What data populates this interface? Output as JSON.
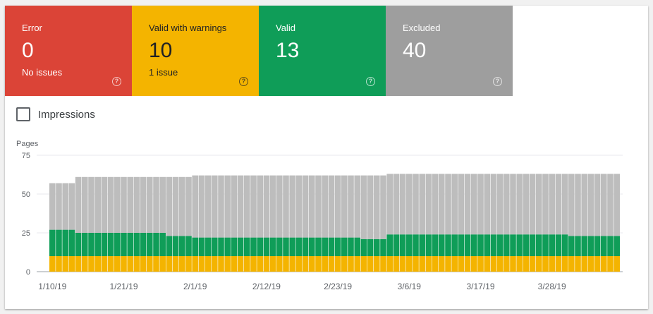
{
  "tiles": [
    {
      "label": "Error",
      "count": "0",
      "sub": "No issues",
      "color": "#db4437"
    },
    {
      "label": "Valid with warnings",
      "count": "10",
      "sub": "1 issue",
      "color": "#f4b400"
    },
    {
      "label": "Valid",
      "count": "13",
      "sub": "",
      "color": "#0f9d58"
    },
    {
      "label": "Excluded",
      "count": "40",
      "sub": "",
      "color": "#9e9e9e"
    }
  ],
  "help_glyph": "?",
  "impressions": {
    "label": "Impressions",
    "checked": false
  },
  "chart_data": {
    "type": "bar",
    "stacked": true,
    "ylabel": "Pages",
    "ylim": [
      0,
      75
    ],
    "yticks": [
      0,
      25,
      50,
      75
    ],
    "grid": true,
    "xtick_labels": [
      "1/10/19",
      "1/21/19",
      "2/1/19",
      "2/12/19",
      "2/23/19",
      "3/6/19",
      "3/17/19",
      "3/28/19"
    ],
    "xtick_indices": [
      0,
      11,
      22,
      33,
      44,
      55,
      66,
      77
    ],
    "series": [
      {
        "key": "warnings",
        "color": "#f4b400",
        "values": [
          10,
          10,
          10,
          10,
          10,
          10,
          10,
          10,
          10,
          10,
          10,
          10,
          10,
          10,
          10,
          10,
          10,
          10,
          10,
          10,
          10,
          10,
          10,
          10,
          10,
          10,
          10,
          10,
          10,
          10,
          10,
          10,
          10,
          10,
          10,
          10,
          10,
          10,
          10,
          10,
          10,
          10,
          10,
          10,
          10,
          10,
          10,
          10,
          10,
          10,
          10,
          10,
          10,
          10,
          10,
          10,
          10,
          10,
          10,
          10,
          10,
          10,
          10,
          10,
          10,
          10,
          10,
          10,
          10,
          10,
          10,
          10,
          10,
          10,
          10,
          10,
          10,
          10,
          10,
          10,
          10,
          10,
          10,
          10,
          10,
          10,
          10,
          10
        ]
      },
      {
        "key": "valid",
        "color": "#0f9d58",
        "values": [
          17,
          17,
          17,
          17,
          15,
          15,
          15,
          15,
          15,
          15,
          15,
          15,
          15,
          15,
          15,
          15,
          15,
          15,
          13,
          13,
          13,
          13,
          12,
          12,
          12,
          12,
          12,
          12,
          12,
          12,
          12,
          12,
          12,
          12,
          12,
          12,
          12,
          12,
          12,
          12,
          12,
          12,
          12,
          12,
          12,
          12,
          12,
          12,
          11,
          11,
          11,
          11,
          14,
          14,
          14,
          14,
          14,
          14,
          14,
          14,
          14,
          14,
          14,
          14,
          14,
          14,
          14,
          14,
          14,
          14,
          14,
          14,
          14,
          14,
          14,
          14,
          14,
          14,
          14,
          14,
          13,
          13,
          13,
          13,
          13,
          13,
          13,
          13
        ]
      },
      {
        "key": "excluded",
        "color": "#bdbdbd",
        "values": [
          30,
          30,
          30,
          30,
          36,
          36,
          36,
          36,
          36,
          36,
          36,
          36,
          36,
          36,
          36,
          36,
          36,
          36,
          38,
          38,
          38,
          38,
          40,
          40,
          40,
          40,
          40,
          40,
          40,
          40,
          40,
          40,
          40,
          40,
          40,
          40,
          40,
          40,
          40,
          40,
          40,
          40,
          40,
          40,
          40,
          40,
          40,
          40,
          41,
          41,
          41,
          41,
          39,
          39,
          39,
          39,
          39,
          39,
          39,
          39,
          39,
          39,
          39,
          39,
          39,
          39,
          39,
          39,
          39,
          39,
          39,
          39,
          39,
          39,
          39,
          39,
          39,
          39,
          39,
          39,
          40,
          40,
          40,
          40,
          40,
          40,
          40,
          40
        ]
      }
    ]
  }
}
